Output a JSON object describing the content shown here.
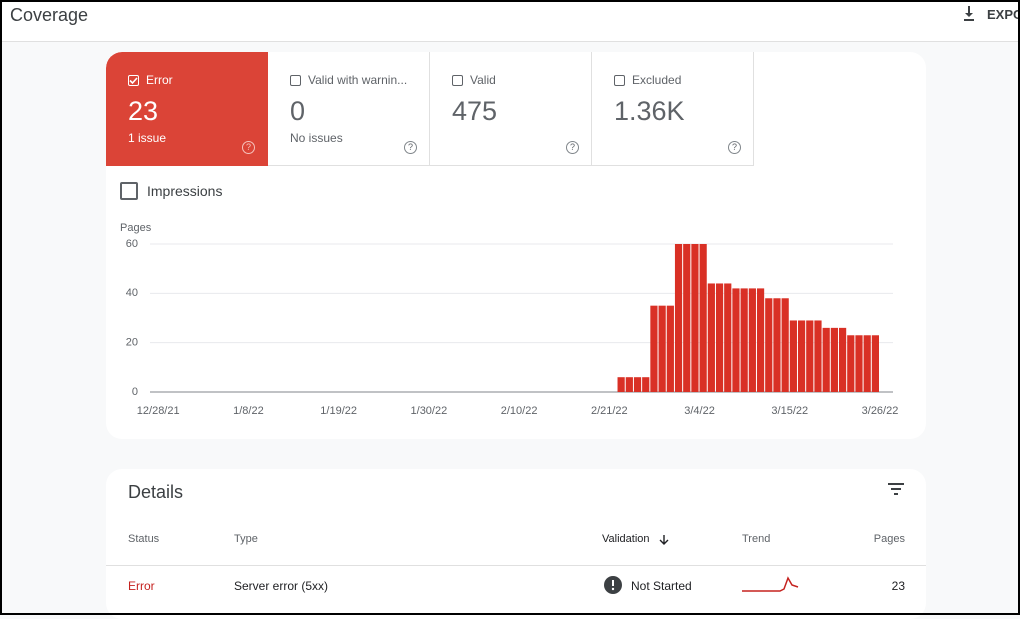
{
  "header": {
    "title": "Coverage",
    "export": "EXPO"
  },
  "tabs": [
    {
      "label": "Error",
      "value": 23,
      "sub": "1 issue",
      "checked": true
    },
    {
      "label": "Valid with warnin...",
      "value": 0,
      "sub": "No issues",
      "checked": false
    },
    {
      "label": "Valid",
      "value": 475,
      "checked": false
    },
    {
      "label": "Excluded",
      "value": "1.36K",
      "checked": false
    }
  ],
  "impressions": "Impressions",
  "chart_data": {
    "type": "bar",
    "y_label": "Pages",
    "color": "#d93025",
    "grid": true,
    "x": [
      "2/22/22",
      "2/23/22",
      "2/24/22",
      "2/25/22",
      "2/26/22",
      "2/27/22",
      "2/28/22",
      "3/1/22",
      "3/2/22",
      "3/3/22",
      "3/4/22",
      "3/5/22",
      "3/6/22",
      "3/7/22",
      "3/8/22",
      "3/9/22",
      "3/10/22",
      "3/11/22",
      "3/12/22",
      "3/13/22",
      "3/14/22",
      "3/15/22",
      "3/16/22",
      "3/17/22",
      "3/18/22",
      "3/19/22",
      "3/20/22",
      "3/21/22",
      "3/22/22",
      "3/23/22",
      "3/24/22",
      "3/25/22"
    ],
    "values": [
      6,
      6,
      6,
      6,
      35,
      35,
      35,
      60,
      60,
      60,
      60,
      44,
      44,
      44,
      42,
      42,
      42,
      42,
      38,
      38,
      38,
      29,
      29,
      29,
      29,
      26,
      26,
      26,
      23,
      23,
      23,
      23
    ],
    "xlim": [
      "12/27/21",
      "3/26/22"
    ],
    "xticks": [
      "12/28/21",
      "1/8/22",
      "1/19/22",
      "1/30/22",
      "2/10/22",
      "2/21/22",
      "3/4/22",
      "3/15/22",
      "3/26/22"
    ],
    "ylim": [
      0,
      60
    ],
    "yticks": [
      0,
      20,
      40,
      60
    ]
  },
  "details": {
    "title": "Details",
    "columns": [
      "Status",
      "Type",
      "Validation",
      "Trend",
      "Pages"
    ],
    "rows": [
      {
        "status": "Error",
        "type": "Server error (5xx)",
        "validation": "Not Started",
        "pages": 23
      }
    ]
  }
}
